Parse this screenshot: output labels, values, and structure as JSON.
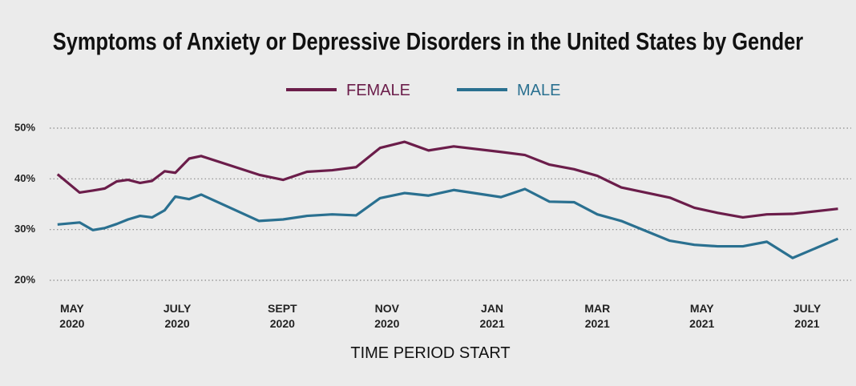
{
  "chart_data": {
    "type": "line",
    "title": "Symptoms of Anxiety or Depressive Disorders in the United States by Gender",
    "x_label": "TIME PERIOD START",
    "legend": "top",
    "grid": true,
    "x": [
      2020.31,
      2020.345,
      2020.366,
      2020.385,
      2020.404,
      2020.422,
      2020.441,
      2020.46,
      2020.48,
      2020.497,
      2020.519,
      2020.538,
      2020.63,
      2020.668,
      2020.706,
      2020.746,
      2020.784,
      2020.822,
      2020.861,
      2020.899,
      2020.939,
      2021.014,
      2021.052,
      2021.091,
      2021.13,
      2021.167,
      2021.205,
      2021.282,
      2021.321,
      2021.358,
      2021.398,
      2021.436,
      2021.477,
      2021.549
    ],
    "xlim": [
      2020.295,
      2021.57
    ],
    "xticks": [
      {
        "value": 2020.333,
        "label": "MAY\n2020"
      },
      {
        "value": 2020.5,
        "label": "JULY\n2020"
      },
      {
        "value": 2020.667,
        "label": "SEPT\n2020"
      },
      {
        "value": 2020.833,
        "label": "NOV\n2020"
      },
      {
        "value": 2021.0,
        "label": "JAN\n2021"
      },
      {
        "value": 2021.167,
        "label": "MAR\n2021"
      },
      {
        "value": 2021.333,
        "label": "MAY\n2021"
      },
      {
        "value": 2021.5,
        "label": "JULY\n2021"
      }
    ],
    "ylim": [
      20,
      50
    ],
    "yticks": [
      {
        "value": 20,
        "label": "20%"
      },
      {
        "value": 30,
        "label": "30%"
      },
      {
        "value": 40,
        "label": "40%"
      },
      {
        "value": 50,
        "label": "50%"
      }
    ],
    "series": [
      {
        "name": "FEMALE",
        "color": "#6b1d4a",
        "values": [
          40.9,
          37.3,
          37.7,
          38.1,
          39.5,
          39.8,
          39.2,
          39.6,
          41.5,
          41.2,
          44.0,
          44.5,
          40.8,
          39.8,
          41.4,
          41.7,
          42.3,
          46.1,
          47.3,
          45.6,
          46.4,
          45.3,
          44.7,
          42.8,
          41.9,
          40.6,
          38.3,
          36.3,
          34.3,
          33.3,
          32.4,
          33.0,
          33.1,
          34.1
        ]
      },
      {
        "name": "MALE",
        "color": "#2a7090",
        "values": [
          31.0,
          31.4,
          29.9,
          30.3,
          31.1,
          32.0,
          32.7,
          32.4,
          33.8,
          36.5,
          36.0,
          36.9,
          31.7,
          32.0,
          32.7,
          33.0,
          32.8,
          36.2,
          37.2,
          36.7,
          37.8,
          36.4,
          38.0,
          35.5,
          35.4,
          33.0,
          31.7,
          27.8,
          27.0,
          26.7,
          26.7,
          27.6,
          24.4,
          28.2
        ]
      }
    ]
  }
}
